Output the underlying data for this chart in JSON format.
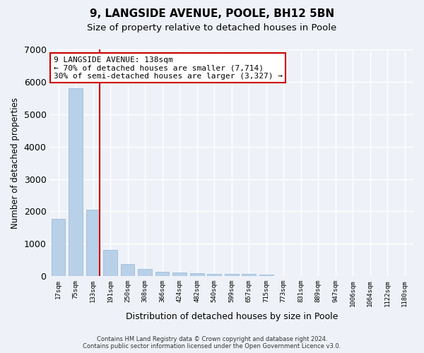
{
  "title": "9, LANGSIDE AVENUE, POOLE, BH12 5BN",
  "subtitle": "Size of property relative to detached houses in Poole",
  "xlabel": "Distribution of detached houses by size in Poole",
  "ylabel": "Number of detached properties",
  "bar_color": "#b8d0e8",
  "bar_edge_color": "#90b4d4",
  "vline_color": "#cc0000",
  "annotation_text": "9 LANGSIDE AVENUE: 138sqm\n← 70% of detached houses are smaller (7,714)\n30% of semi-detached houses are larger (3,327) →",
  "annotation_box_color": "#ffffff",
  "annotation_box_edge": "#cc0000",
  "categories": [
    "17sqm",
    "75sqm",
    "133sqm",
    "191sqm",
    "250sqm",
    "308sqm",
    "366sqm",
    "424sqm",
    "482sqm",
    "540sqm",
    "599sqm",
    "657sqm",
    "715sqm",
    "773sqm",
    "831sqm",
    "889sqm",
    "947sqm",
    "1006sqm",
    "1064sqm",
    "1122sqm",
    "1180sqm"
  ],
  "values": [
    1780,
    5800,
    2060,
    820,
    380,
    230,
    140,
    115,
    90,
    70,
    65,
    60,
    58,
    0,
    0,
    0,
    0,
    0,
    0,
    0,
    0
  ],
  "ylim": [
    0,
    7000
  ],
  "yticks": [
    0,
    1000,
    2000,
    3000,
    4000,
    5000,
    6000,
    7000
  ],
  "background_color": "#eef2f8",
  "grid_color": "#ffffff",
  "vline_bar_index": 2,
  "footer_line1": "Contains HM Land Registry data © Crown copyright and database right 2024.",
  "footer_line2": "Contains public sector information licensed under the Open Government Licence v3.0."
}
